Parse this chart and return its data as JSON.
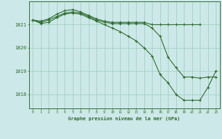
{
  "bg_color": "#cce8e8",
  "line_color": "#2d6a2d",
  "grid_color": "#99ccbb",
  "title": "Graphe pression niveau de la mer (hPa)",
  "ylabel_ticks": [
    1018,
    1019,
    1020,
    1021
  ],
  "xlim": [
    -0.5,
    23.5
  ],
  "ylim": [
    1017.4,
    1022.0
  ],
  "xlabel_ticks": [
    0,
    1,
    2,
    3,
    4,
    5,
    6,
    7,
    8,
    9,
    10,
    11,
    12,
    13,
    14,
    15,
    16,
    17,
    18,
    19,
    20,
    21,
    22,
    23
  ],
  "series1_x": [
    0,
    1,
    2,
    3,
    4,
    5,
    6,
    7,
    8,
    9,
    10,
    11,
    12,
    13,
    14,
    15,
    16,
    17,
    18,
    19,
    20,
    21
  ],
  "series1_y": [
    1021.2,
    1021.15,
    1021.25,
    1021.45,
    1021.6,
    1021.65,
    1021.55,
    1021.4,
    1021.25,
    1021.15,
    1021.1,
    1021.1,
    1021.1,
    1021.1,
    1021.1,
    1021.0,
    1021.0,
    1021.0,
    1021.0,
    1021.0,
    1021.0,
    1021.0
  ],
  "series2_x": [
    0,
    1,
    2,
    3,
    4,
    5,
    6,
    7,
    8,
    9,
    10,
    11,
    12,
    13,
    14,
    15,
    16,
    17,
    18,
    19,
    20,
    21,
    22,
    23
  ],
  "series2_y": [
    1021.2,
    1021.1,
    1021.2,
    1021.35,
    1021.5,
    1021.55,
    1021.5,
    1021.35,
    1021.2,
    1021.1,
    1021.05,
    1021.05,
    1021.05,
    1021.05,
    1021.05,
    1020.85,
    1020.5,
    1019.6,
    1019.15,
    1018.75,
    1018.75,
    1018.7,
    1018.75,
    1018.75
  ],
  "series3_x": [
    0,
    1,
    2,
    3,
    4,
    5,
    6,
    7,
    8,
    9,
    10,
    11,
    12,
    13,
    14,
    15,
    16,
    17,
    18,
    19,
    20,
    21,
    22,
    23
  ],
  "series3_y": [
    1021.2,
    1021.05,
    1021.1,
    1021.3,
    1021.45,
    1021.5,
    1021.45,
    1021.3,
    1021.15,
    1021.0,
    1020.85,
    1020.7,
    1020.5,
    1020.3,
    1020.0,
    1019.65,
    1018.85,
    1018.5,
    1018.0,
    1017.75,
    1017.75,
    1017.75,
    1018.3,
    1019.0
  ]
}
